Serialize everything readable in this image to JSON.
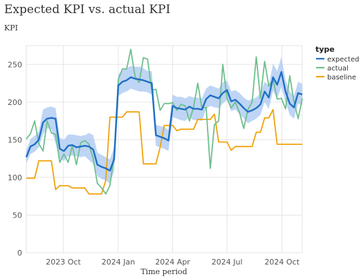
{
  "chart_data": {
    "type": "line",
    "title": "Expected KPI vs. actual KPI",
    "xlabel": "Time period",
    "ylabel": "KPI",
    "ylim": [
      0,
      275
    ],
    "y_ticks": [
      0,
      50,
      100,
      150,
      200,
      250
    ],
    "x_range": [
      "2023-07-31",
      "2024-11-04"
    ],
    "x_ticks": [
      {
        "date": "2023-10-01",
        "label": "2023 Oct"
      },
      {
        "date": "2024-01-01",
        "label": "2024 Jan"
      },
      {
        "date": "2024-04-01",
        "label": "2024 Apr"
      },
      {
        "date": "2024-07-01",
        "label": "2024 Jul"
      },
      {
        "date": "2024-10-01",
        "label": "2024 Oct"
      }
    ],
    "grid": true,
    "legend": {
      "title": "type",
      "placement": "right"
    },
    "x": [
      "2023-07-31",
      "2023-08-07",
      "2023-08-14",
      "2023-08-21",
      "2023-08-28",
      "2023-09-04",
      "2023-09-11",
      "2023-09-18",
      "2023-09-25",
      "2023-10-02",
      "2023-10-09",
      "2023-10-16",
      "2023-10-23",
      "2023-10-30",
      "2023-11-06",
      "2023-11-13",
      "2023-11-20",
      "2023-11-27",
      "2023-12-04",
      "2023-12-11",
      "2023-12-18",
      "2023-12-25",
      "2024-01-01",
      "2024-01-08",
      "2024-01-15",
      "2024-01-22",
      "2024-01-29",
      "2024-02-05",
      "2024-02-12",
      "2024-02-19",
      "2024-02-26",
      "2024-03-04",
      "2024-03-11",
      "2024-03-18",
      "2024-03-25",
      "2024-04-01",
      "2024-04-08",
      "2024-04-15",
      "2024-04-22",
      "2024-04-29",
      "2024-05-06",
      "2024-05-13",
      "2024-05-20",
      "2024-05-27",
      "2024-06-03",
      "2024-06-10",
      "2024-06-17",
      "2024-06-24",
      "2024-07-01",
      "2024-07-08",
      "2024-07-15",
      "2024-07-22",
      "2024-07-29",
      "2024-08-05",
      "2024-08-12",
      "2024-08-19",
      "2024-08-26",
      "2024-09-02",
      "2024-09-09",
      "2024-09-16",
      "2024-09-23",
      "2024-09-30",
      "2024-10-07",
      "2024-10-14",
      "2024-10-21",
      "2024-10-28",
      "2024-11-04"
    ],
    "band": {
      "series": "expected",
      "lower": [
        118,
        131,
        134,
        140,
        157,
        165,
        164,
        145,
        125,
        122,
        128,
        129,
        128,
        127,
        128,
        123,
        118,
        102,
        98,
        96,
        92,
        108,
        208,
        212,
        214,
        218,
        216,
        214,
        214,
        213,
        210,
        142,
        140,
        138,
        135,
        180,
        178,
        176,
        175,
        180,
        176,
        176,
        175,
        191,
        195,
        193,
        192,
        198,
        203,
        188,
        190,
        184,
        178,
        172,
        175,
        178,
        183,
        200,
        191,
        215,
        205,
        220,
        200,
        183,
        178,
        198,
        196
      ],
      "upper": [
        136,
        151,
        155,
        161,
        190,
        193,
        194,
        192,
        153,
        150,
        157,
        157,
        156,
        155,
        156,
        159,
        156,
        133,
        130,
        127,
        124,
        140,
        237,
        242,
        245,
        248,
        247,
        247,
        245,
        241,
        241,
        170,
        168,
        167,
        163,
        210,
        207,
        207,
        205,
        208,
        206,
        206,
        205,
        218,
        222,
        220,
        218,
        226,
        229,
        214,
        216,
        212,
        206,
        202,
        204,
        206,
        212,
        227,
        222,
        251,
        241,
        260,
        229,
        214,
        208,
        227,
        224
      ]
    },
    "series": [
      {
        "name": "expected",
        "color": "#1f6fc4",
        "values": [
          127,
          141,
          144,
          150,
          173,
          178,
          179,
          178,
          138,
          135,
          142,
          143,
          140,
          141,
          142,
          141,
          137,
          117,
          114,
          112,
          109,
          124,
          222,
          227,
          229,
          233,
          231,
          230,
          229,
          227,
          225,
          156,
          154,
          152,
          149,
          195,
          192,
          191,
          190,
          194,
          191,
          191,
          190,
          204,
          209,
          207,
          205,
          212,
          216,
          201,
          203,
          198,
          192,
          187,
          189,
          192,
          197,
          214,
          206,
          233,
          223,
          240,
          214,
          198,
          193,
          212,
          210
        ]
      },
      {
        "name": "actual",
        "color": "#6fbf8e",
        "values": [
          151,
          158,
          175,
          145,
          135,
          175,
          159,
          157,
          120,
          131,
          120,
          142,
          117,
          146,
          149,
          144,
          125,
          92,
          86,
          78,
          89,
          130,
          230,
          244,
          244,
          270,
          234,
          226,
          259,
          257,
          216,
          217,
          189,
          198,
          198,
          199,
          189,
          197,
          195,
          175,
          193,
          225,
          192,
          193,
          112,
          170,
          175,
          250,
          205,
          192,
          200,
          186,
          165,
          190,
          200,
          260,
          205,
          254,
          221,
          230,
          204,
          205,
          191,
          235,
          201,
          178,
          205
        ]
      },
      {
        "name": "baseline",
        "color": "#f0a30a",
        "values": [
          99,
          99,
          99,
          122,
          122,
          122,
          122,
          84,
          89,
          89,
          89,
          86,
          86,
          86,
          86,
          78,
          78,
          78,
          78,
          96,
          180,
          180,
          180,
          180,
          187,
          187,
          187,
          187,
          118,
          118,
          118,
          118,
          140,
          169,
          169,
          169,
          162,
          164,
          164,
          164,
          164,
          177,
          177,
          177,
          177,
          184,
          147,
          147,
          147,
          136,
          141,
          141,
          141,
          141,
          141,
          160,
          160,
          179,
          179,
          190,
          144,
          144,
          144,
          144,
          144,
          144,
          144
        ]
      }
    ]
  }
}
